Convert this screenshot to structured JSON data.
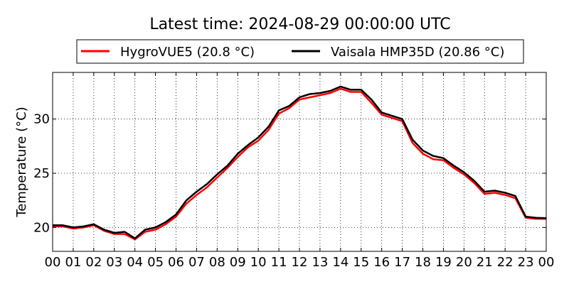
{
  "chart_data": {
    "type": "line",
    "title": "Latest time: 2024-08-29 00:00:00 UTC",
    "xlabel": "",
    "ylabel": "Temperature (°C)",
    "xlim": [
      0,
      24
    ],
    "ylim": [
      17.8,
      34.3
    ],
    "x_ticks": [
      "00",
      "01",
      "02",
      "03",
      "04",
      "05",
      "06",
      "07",
      "08",
      "09",
      "10",
      "11",
      "12",
      "13",
      "14",
      "15",
      "16",
      "17",
      "18",
      "19",
      "20",
      "21",
      "22",
      "23",
      "00"
    ],
    "y_ticks": [
      20,
      25,
      30
    ],
    "grid": true,
    "legend_position": "top",
    "x": [
      0,
      0.5,
      1,
      1.5,
      2,
      2.5,
      3,
      3.5,
      4,
      4.5,
      5,
      5.5,
      6,
      6.5,
      7,
      7.5,
      8,
      8.5,
      9,
      9.5,
      10,
      10.5,
      11,
      11.5,
      12,
      12.5,
      13,
      13.5,
      14,
      14.5,
      15,
      15.5,
      16,
      16.5,
      17,
      17.5,
      18,
      18.5,
      19,
      19.5,
      20,
      20.5,
      21,
      21.5,
      22,
      22.5,
      23,
      23.5,
      24
    ],
    "series": [
      {
        "name": "HygroVUE5 (20.8 °C)",
        "color": "#ff0000",
        "values": [
          20.1,
          20.1,
          19.9,
          20.0,
          20.2,
          19.7,
          19.4,
          19.4,
          18.9,
          19.6,
          19.8,
          20.3,
          21.0,
          22.2,
          23.0,
          23.7,
          24.6,
          25.5,
          26.5,
          27.4,
          28.0,
          29.0,
          30.5,
          31.0,
          31.8,
          32.0,
          32.2,
          32.4,
          32.8,
          32.5,
          32.5,
          31.5,
          30.4,
          30.1,
          29.8,
          27.8,
          26.8,
          26.3,
          26.2,
          25.5,
          24.9,
          24.1,
          23.1,
          23.2,
          23.0,
          22.7,
          20.9,
          20.8,
          20.8
        ]
      },
      {
        "name": "Vaisala HMP35D (20.86 °C)",
        "color": "#000000",
        "values": [
          20.2,
          20.2,
          20.0,
          20.1,
          20.3,
          19.8,
          19.5,
          19.6,
          19.0,
          19.8,
          20.0,
          20.5,
          21.2,
          22.5,
          23.3,
          24.0,
          24.9,
          25.7,
          26.8,
          27.6,
          28.3,
          29.3,
          30.8,
          31.2,
          32.0,
          32.3,
          32.4,
          32.6,
          33.0,
          32.7,
          32.7,
          31.8,
          30.6,
          30.3,
          30.0,
          28.1,
          27.1,
          26.6,
          26.4,
          25.7,
          25.1,
          24.3,
          23.3,
          23.4,
          23.2,
          22.9,
          21.0,
          20.9,
          20.86
        ]
      }
    ]
  }
}
